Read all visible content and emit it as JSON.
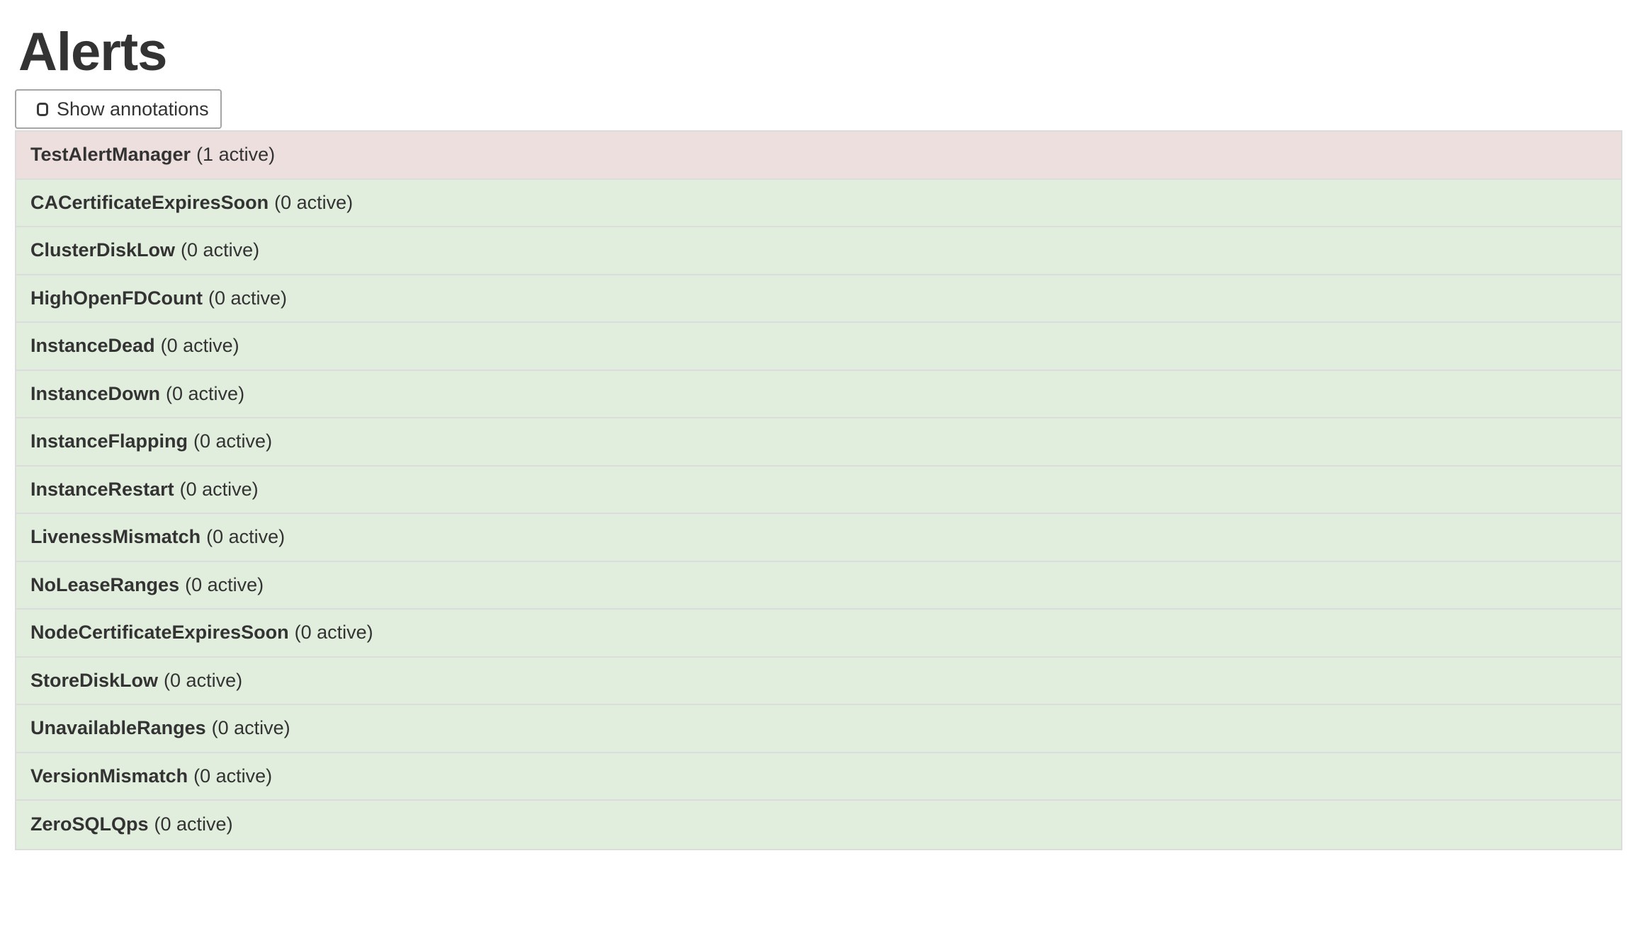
{
  "page": {
    "title": "Alerts"
  },
  "toolbar": {
    "show_annotations_label": "Show annotations",
    "checkbox_checked": false
  },
  "colors": {
    "firing_row_bg": "#eedfdf",
    "inactive_row_bg": "#e2eedd",
    "row_border": "#dcdcdc",
    "text": "#333333",
    "button_border": "#a6a6a6"
  },
  "alerts": [
    {
      "name": "TestAlertManager",
      "active_count": 1,
      "count_label": "(1 active)",
      "state": "firing"
    },
    {
      "name": "CACertificateExpiresSoon",
      "active_count": 0,
      "count_label": "(0 active)",
      "state": "inactive"
    },
    {
      "name": "ClusterDiskLow",
      "active_count": 0,
      "count_label": "(0 active)",
      "state": "inactive"
    },
    {
      "name": "HighOpenFDCount",
      "active_count": 0,
      "count_label": "(0 active)",
      "state": "inactive"
    },
    {
      "name": "InstanceDead",
      "active_count": 0,
      "count_label": "(0 active)",
      "state": "inactive"
    },
    {
      "name": "InstanceDown",
      "active_count": 0,
      "count_label": "(0 active)",
      "state": "inactive"
    },
    {
      "name": "InstanceFlapping",
      "active_count": 0,
      "count_label": "(0 active)",
      "state": "inactive"
    },
    {
      "name": "InstanceRestart",
      "active_count": 0,
      "count_label": "(0 active)",
      "state": "inactive"
    },
    {
      "name": "LivenessMismatch",
      "active_count": 0,
      "count_label": "(0 active)",
      "state": "inactive"
    },
    {
      "name": "NoLeaseRanges",
      "active_count": 0,
      "count_label": "(0 active)",
      "state": "inactive"
    },
    {
      "name": "NodeCertificateExpiresSoon",
      "active_count": 0,
      "count_label": "(0 active)",
      "state": "inactive"
    },
    {
      "name": "StoreDiskLow",
      "active_count": 0,
      "count_label": "(0 active)",
      "state": "inactive"
    },
    {
      "name": "UnavailableRanges",
      "active_count": 0,
      "count_label": "(0 active)",
      "state": "inactive"
    },
    {
      "name": "VersionMismatch",
      "active_count": 0,
      "count_label": "(0 active)",
      "state": "inactive"
    },
    {
      "name": "ZeroSQLQps",
      "active_count": 0,
      "count_label": "(0 active)",
      "state": "inactive"
    }
  ]
}
